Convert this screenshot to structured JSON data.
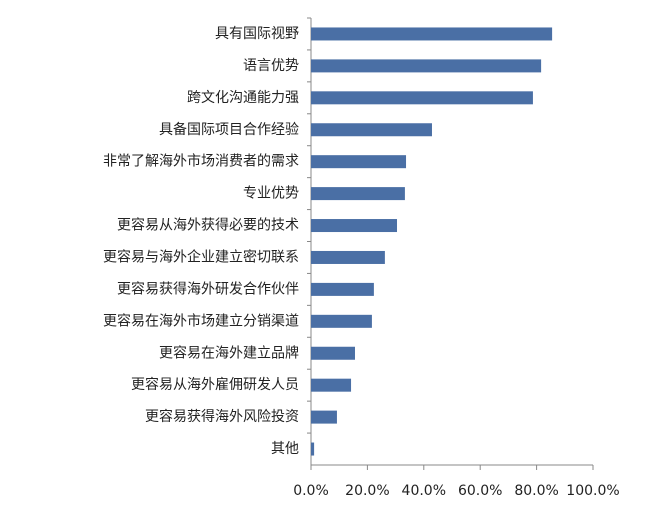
{
  "chart_data": {
    "type": "barh",
    "categories": [
      "具有国际视野",
      "语言优势",
      "跨文化沟通能力强",
      "具备国际项目合作经验",
      "非常了解海外市场消费者的需求",
      "专业优势",
      "更容易从海外获得必要的技术",
      "更容易与海外企业建立密切联系",
      "更容易获得海外研发合作伙伴",
      "更容易在海外市场建立分销渠道",
      "更容易在海外建立品牌",
      "更容易从海外雇佣研发人员",
      "更容易获得海外风险投资",
      "其他"
    ],
    "values": [
      85.5,
      81.6,
      78.7,
      42.9,
      33.7,
      33.3,
      30.5,
      26.2,
      22.3,
      21.6,
      15.6,
      14.2,
      9.2,
      1.1
    ],
    "color": "#4a6fa5",
    "xlim": [
      0,
      100
    ],
    "xticks": [
      {
        "value": 0,
        "label": "0.0%"
      },
      {
        "value": 20,
        "label": "20.0%"
      },
      {
        "value": 40,
        "label": "40.0%"
      },
      {
        "value": 60,
        "label": "60.0%"
      },
      {
        "value": 80,
        "label": "80.0%"
      },
      {
        "value": 100,
        "label": "100.0%"
      }
    ]
  }
}
